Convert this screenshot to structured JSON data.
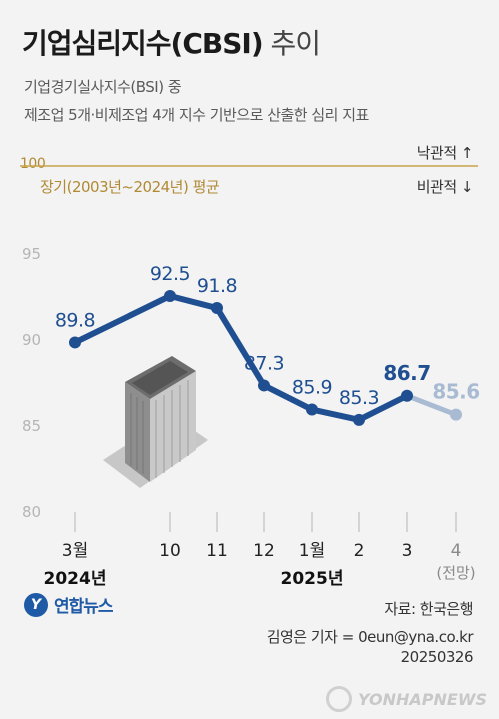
{
  "header": {
    "title_main": "기업심리지수(CBSI)",
    "title_light": " 추이",
    "subtitle_line1": "기업경기실사지수(BSI) 중",
    "subtitle_line2": "제조업 5개·비제조업 4개 지수 기반으로 산출한 심리 지표"
  },
  "reference": {
    "value_label": "100",
    "longterm_label": "장기(2003년~2024년) 평균",
    "optimistic_label": "낙관적 ↑",
    "pessimistic_label": "비관적 ↓"
  },
  "chart_data": {
    "type": "line",
    "title": "기업심리지수(CBSI) 추이",
    "x": [
      "3월",
      "10",
      "11",
      "12",
      "1월",
      "2",
      "3",
      "4"
    ],
    "x_secondary": [
      "",
      "",
      "",
      "",
      "",
      "",
      "",
      "(전망)"
    ],
    "year_labels": [
      "2024년",
      "2025년"
    ],
    "series": [
      {
        "values": [
          89.8,
          92.5,
          91.8,
          87.3,
          85.9,
          85.3,
          86.7,
          null
        ],
        "color": "#1f4f91"
      },
      {
        "values": [
          null,
          null,
          null,
          null,
          null,
          null,
          86.7,
          85.6
        ],
        "color": "#a9bad3"
      }
    ],
    "data_labels": [
      "89.8",
      "92.5",
      "91.8",
      "87.3",
      "85.9",
      "85.3",
      "86.7",
      "85.6"
    ],
    "y_ticks": [
      80,
      85,
      90,
      95
    ],
    "y_ticks_labels": [
      "80",
      "85",
      "90",
      "95"
    ],
    "reference_line": 100,
    "ylim": [
      80,
      100
    ],
    "grid": false,
    "colors": {
      "line": "#1f4f91",
      "forecast": "#a9bad3",
      "reference": "#c8a44a",
      "axis_text": "#b5b5b5"
    }
  },
  "footer": {
    "logo_text": "연합뉴스",
    "source": "자료: 한국은행",
    "reporter": "김영은 기자 = 0eun@yna.co.kr",
    "date": "20250326",
    "watermark": "YONHAPNEWS"
  }
}
